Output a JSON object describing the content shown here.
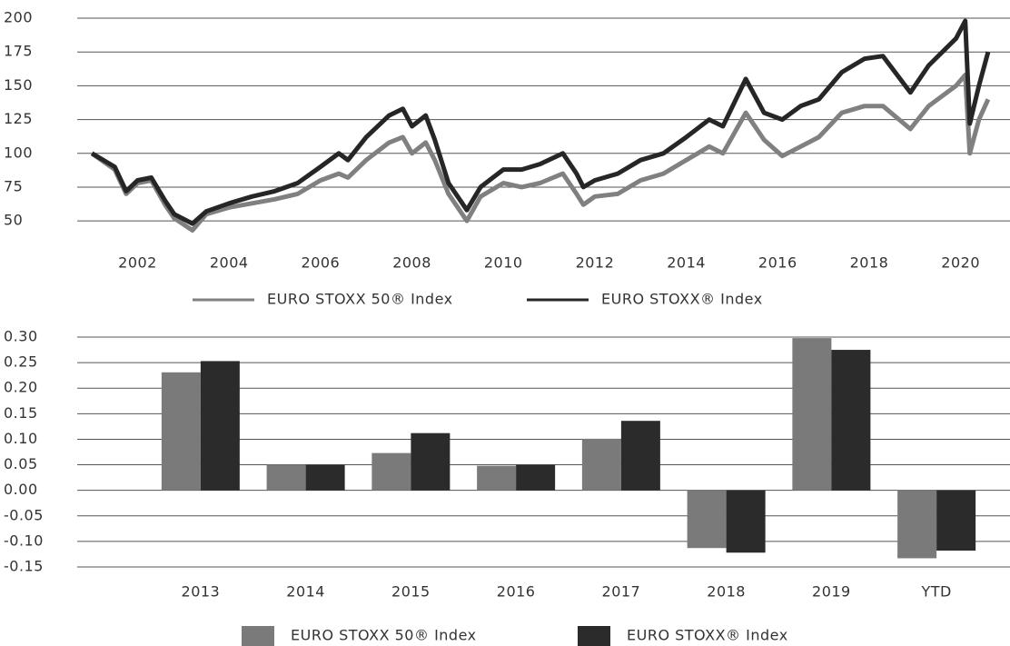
{
  "chart_data": [
    {
      "type": "line",
      "x": [
        2001.0,
        2001.5,
        2001.75,
        2002.0,
        2002.3,
        2002.6,
        2002.8,
        2003.2,
        2003.5,
        2004.0,
        2004.5,
        2005.0,
        2005.5,
        2006.0,
        2006.4,
        2006.6,
        2007.0,
        2007.5,
        2007.8,
        2008.0,
        2008.3,
        2008.5,
        2008.8,
        2009.2,
        2009.5,
        2010.0,
        2010.4,
        2010.8,
        2011.3,
        2011.6,
        2011.75,
        2012.0,
        2012.5,
        2013.0,
        2013.5,
        2014.0,
        2014.5,
        2014.8,
        2015.3,
        2015.7,
        2016.1,
        2016.5,
        2016.9,
        2017.4,
        2017.9,
        2018.3,
        2018.9,
        2019.3,
        2019.9,
        2020.1,
        2020.2,
        2020.4,
        2020.6
      ],
      "series": [
        {
          "name": "EURO STOXX 50® Index",
          "color": "#808080",
          "values": [
            100,
            88,
            70,
            78,
            80,
            62,
            52,
            43,
            55,
            60,
            63,
            66,
            70,
            80,
            85,
            82,
            95,
            108,
            112,
            100,
            108,
            95,
            70,
            50,
            68,
            78,
            75,
            78,
            85,
            70,
            62,
            68,
            70,
            80,
            85,
            95,
            105,
            100,
            130,
            110,
            98,
            105,
            112,
            130,
            135,
            135,
            118,
            135,
            150,
            158,
            100,
            125,
            140
          ]
        },
        {
          "name": "EURO STOXX® Index",
          "color": "#262626",
          "values": [
            100,
            90,
            72,
            80,
            82,
            65,
            55,
            48,
            57,
            63,
            68,
            72,
            78,
            90,
            100,
            95,
            112,
            128,
            133,
            120,
            128,
            110,
            78,
            58,
            75,
            88,
            88,
            92,
            100,
            85,
            75,
            80,
            85,
            95,
            100,
            112,
            125,
            120,
            155,
            130,
            125,
            135,
            140,
            160,
            170,
            172,
            145,
            165,
            185,
            198,
            122,
            150,
            175
          ]
        }
      ],
      "xlim": [
        2000.5,
        2021
      ],
      "xticks": [
        2002,
        2004,
        2006,
        2008,
        2010,
        2012,
        2014,
        2016,
        2018,
        2020
      ],
      "ylim": [
        40,
        200
      ],
      "yticks": [
        50,
        75,
        100,
        125,
        150,
        175,
        200
      ],
      "grid": true
    },
    {
      "type": "bar",
      "categories": [
        "2013",
        "2014",
        "2015",
        "2016",
        "2017",
        "2018",
        "2019",
        "YTD"
      ],
      "series": [
        {
          "name": "EURO STOXX 50® Index",
          "color": "#7a7a7a",
          "values": [
            0.231,
            0.05,
            0.073,
            0.048,
            0.101,
            -0.113,
            0.298,
            -0.133
          ]
        },
        {
          "name": "EURO STOXX® Index",
          "color": "#2b2b2b",
          "values": [
            0.253,
            0.05,
            0.112,
            0.05,
            0.136,
            -0.122,
            0.275,
            -0.118
          ]
        }
      ],
      "ylim": [
        -0.15,
        0.3
      ],
      "yticks": [
        {
          "value": 0.3,
          "label": "0.30"
        },
        {
          "value": 0.25,
          "label": "0.25"
        },
        {
          "value": 0.2,
          "label": "0.20"
        },
        {
          "value": 0.15,
          "label": "0.15"
        },
        {
          "value": 0.1,
          "label": "0.10"
        },
        {
          "value": 0.05,
          "label": "0.05"
        },
        {
          "value": 0,
          "label": "0.00"
        },
        {
          "value": -0.05,
          "label": "-0.05"
        },
        {
          "value": -0.1,
          "label": "-0.10"
        },
        {
          "value": -0.15,
          "label": "-0.15"
        }
      ],
      "grid": true
    }
  ]
}
